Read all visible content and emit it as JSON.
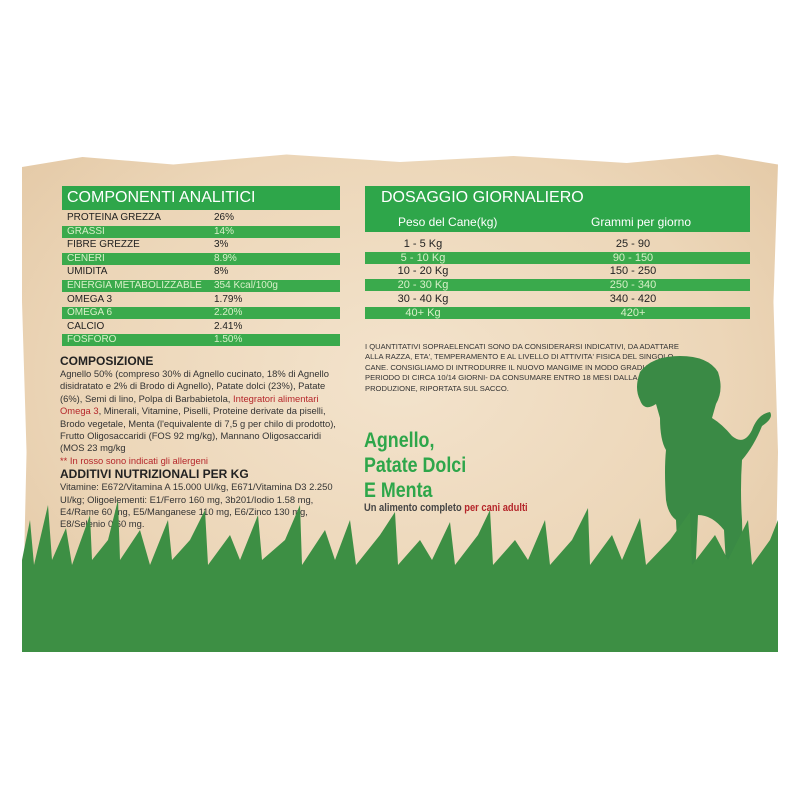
{
  "colors": {
    "green": "#2ea64a",
    "red": "#b5262a",
    "paper": "#ecd6b8"
  },
  "analitici": {
    "title": "COMPONENTI ANALITICI",
    "rows": [
      [
        "PROTEINA GREZZA",
        "26%"
      ],
      [
        "GRASSI",
        "14%"
      ],
      [
        "FIBRE GREZZE",
        "3%"
      ],
      [
        "CENERI",
        "8.9%"
      ],
      [
        "UMIDITA",
        "8%"
      ],
      [
        "ENERGIA METABOLIZZABLE",
        "354 Kcal/100g"
      ],
      [
        "OMEGA 3",
        "1.79%"
      ],
      [
        "OMEGA 6",
        "2.20%"
      ],
      [
        "CALCIO",
        "2.41%"
      ],
      [
        "FOSFORO",
        "1.50%"
      ]
    ]
  },
  "dosaggio": {
    "title": "DOSAGGIO GIORNALIERO",
    "col1": "Peso del Cane(kg)",
    "col2": "Grammi per giorno",
    "rows": [
      [
        "1 - 5 Kg",
        "25 - 90"
      ],
      [
        "5 - 10 Kg",
        "90 - 150"
      ],
      [
        "10 - 20 Kg",
        "150 - 250"
      ],
      [
        "20 - 30 Kg",
        "250 - 340"
      ],
      [
        "30 - 40 Kg",
        "340 - 420"
      ],
      [
        "40+ Kg",
        "420+"
      ]
    ],
    "note": "I QUANTITATIVI SOPRAELENCATI SONO DA CONSIDERARSI INDICATIVI, DA ADATTARE ALLA RAZZA, ETA', TEMPERAMENTO E AL LIVELLO DI ATTIVITA' FISICA DEL SINGOLO CANE. CONSIGLIAMO DI INTRODURRE IL NUOVO MANGIME IN MODO GRADUALE IN UN PERIODO DI CIRCA 10/14 GIORNI- DA CONSUMARE ENTRO 18 MESI DALLA DATA DI PRODUZIONE, RIPORTATA SUL SACCO."
  },
  "composizione": {
    "title": "COMPOSIZIONE",
    "text1": "Agnello 50% (compreso 30% di Agnello cucinato, 18% di Agnello disidratato e 2% di Brodo di Agnello), Patate dolci (23%), Patate (6%), Semi di lino, Polpa di Barbabietola, ",
    "allergen": "Integratori alimentari Omega 3",
    "text2": ", Minerali, Vitamine, Piselli, Proteine derivate da piselli, Brodo vegetale, Menta (l'equivalente di 7,5 g per chilo di prodotto), Frutto Oligosaccaridi (FOS 92 mg/kg), Mannano Oligosaccaridi (MOS 23 mg/kg",
    "allergen_note": "** In rosso sono indicati gli allergeni"
  },
  "additivi": {
    "title": "ADDITIVI NUTRIZIONALI PER KG",
    "text": "Vitamine: E672/Vitamina A 15.000 UI/kg, E671/Vitamina D3 2.250 UI/kg; Oligoelementi: E1/Ferro 160 mg, 3b201/Iodio 1.58 mg, E4/Rame 60 mg, E5/Manganese 110 mg, E6/Zinco 130 mg, E8/Selenio 0.60 mg."
  },
  "product": {
    "line1": "Agnello,",
    "line2": "Patate Dolci",
    "line3": "E Menta",
    "sub_a": "Un alimento completo ",
    "sub_b": "per cani adulti"
  }
}
